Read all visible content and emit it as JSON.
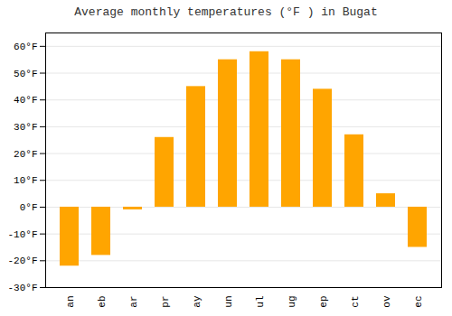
{
  "chart_data": {
    "type": "bar",
    "title": "Average monthly temperatures (°F ) in Bugat",
    "categories": [
      "an",
      "eb",
      "ar",
      "pr",
      "ay",
      "un",
      "ul",
      "ug",
      "ep",
      "ct",
      "ov",
      "ec"
    ],
    "values": [
      -22,
      -18,
      -1,
      26,
      45,
      55,
      58,
      55,
      44,
      27,
      5,
      -15
    ],
    "color": "#FFA500",
    "ylim": [
      -30,
      65
    ],
    "yticks": [
      {
        "value": -30,
        "label": "-30°F"
      },
      {
        "value": -20,
        "label": "-20°F"
      },
      {
        "value": -10,
        "label": "-10°F"
      },
      {
        "value": 0,
        "label": "0°F"
      },
      {
        "value": 10,
        "label": "10°F"
      },
      {
        "value": 20,
        "label": "20°F"
      },
      {
        "value": 30,
        "label": "30°F"
      },
      {
        "value": 40,
        "label": "40°F"
      },
      {
        "value": 50,
        "label": "50°F"
      },
      {
        "value": 60,
        "label": "60°F"
      }
    ],
    "grid": true
  }
}
